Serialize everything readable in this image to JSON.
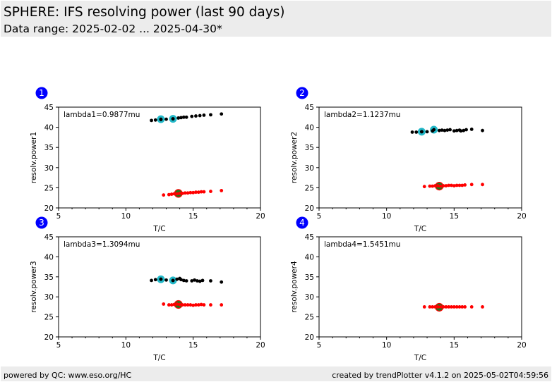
{
  "header": {
    "title": "SPHERE: IFS resolving power (last 90 days)",
    "subtitle": "Data range: 2025-02-02 ... 2025-04-30*"
  },
  "footer": {
    "left": "powered by QC: www.eso.org/HC",
    "right": "created by trendPlotter v4.1.2 on 2025-05-02T04:59:56"
  },
  "colors": {
    "badge": "#0000ff",
    "series_black": "#000000",
    "series_red": "#ff0000",
    "highlight_cyan": "#22b8c8",
    "highlight_green": "#1e7a1e",
    "header_bg": "#ececec"
  },
  "chart_data": [
    {
      "type": "scatter",
      "panel": "1",
      "annotation": "lambda1=0.9877mu",
      "xlabel": "T/C",
      "ylabel": "resolv.power1",
      "xlim": [
        5,
        20
      ],
      "ylim": [
        20,
        45
      ],
      "xticks": [
        5,
        10,
        15,
        20
      ],
      "yticks": [
        20,
        25,
        30,
        35,
        40,
        45
      ],
      "series": [
        {
          "color": "black",
          "x": [
            11.9,
            12.2,
            12.6,
            13.0,
            13.5,
            13.9,
            14.1,
            14.3,
            14.5,
            14.9,
            15.2,
            15.5,
            15.8,
            16.3,
            17.1
          ],
          "y": [
            41.7,
            41.8,
            41.9,
            42.0,
            42.1,
            42.3,
            42.4,
            42.5,
            42.5,
            42.7,
            42.8,
            42.9,
            43.0,
            43.1,
            43.3
          ]
        },
        {
          "color": "red",
          "x": [
            12.8,
            13.2,
            13.4,
            13.6,
            13.8,
            14.0,
            14.2,
            14.4,
            14.6,
            14.8,
            15.0,
            15.2,
            15.4,
            15.6,
            15.8,
            16.3,
            17.1
          ],
          "y": [
            23.2,
            23.3,
            23.4,
            23.5,
            23.5,
            23.6,
            23.6,
            23.7,
            23.7,
            23.8,
            23.8,
            23.9,
            23.9,
            24.0,
            24.0,
            24.1,
            24.3
          ]
        }
      ],
      "highlights": [
        {
          "color": "cyan",
          "x": 12.6,
          "y": 42.0
        },
        {
          "color": "cyan",
          "x": 13.5,
          "y": 42.1
        },
        {
          "color": "green",
          "x": 13.9,
          "y": 23.6
        }
      ]
    },
    {
      "type": "scatter",
      "panel": "2",
      "annotation": "lambda2=1.1237mu",
      "xlabel": "T/C",
      "ylabel": "resolv.power2",
      "xlim": [
        5,
        20
      ],
      "ylim": [
        20,
        45
      ],
      "xticks": [
        5,
        10,
        15,
        20
      ],
      "yticks": [
        20,
        25,
        30,
        35,
        40,
        45
      ],
      "series": [
        {
          "color": "black",
          "x": [
            11.9,
            12.2,
            12.6,
            13.0,
            13.4,
            13.9,
            14.1,
            14.3,
            14.5,
            14.7,
            15.0,
            15.2,
            15.4,
            15.5,
            15.7,
            15.9,
            16.3,
            17.1
          ],
          "y": [
            38.8,
            38.8,
            38.9,
            38.9,
            39.1,
            39.2,
            39.3,
            39.2,
            39.3,
            39.4,
            39.1,
            39.2,
            39.3,
            39.1,
            39.2,
            39.4,
            39.5,
            39.2
          ]
        },
        {
          "color": "red",
          "x": [
            12.8,
            13.2,
            13.4,
            13.6,
            13.8,
            14.0,
            14.2,
            14.4,
            14.6,
            14.8,
            15.0,
            15.2,
            15.4,
            15.6,
            15.8,
            16.3,
            17.1
          ],
          "y": [
            25.3,
            25.4,
            25.4,
            25.5,
            25.5,
            25.4,
            25.5,
            25.5,
            25.6,
            25.6,
            25.5,
            25.6,
            25.6,
            25.6,
            25.7,
            25.8,
            25.8
          ]
        }
      ],
      "highlights": [
        {
          "color": "cyan",
          "x": 12.6,
          "y": 38.9
        },
        {
          "color": "cyan",
          "x": 13.5,
          "y": 39.4
        },
        {
          "color": "green",
          "x": 13.9,
          "y": 25.4
        }
      ]
    },
    {
      "type": "scatter",
      "panel": "3",
      "annotation": "lambda3=1.3094mu",
      "xlabel": "T/C",
      "ylabel": "resolv.power3",
      "xlim": [
        5,
        20
      ],
      "ylim": [
        20,
        45
      ],
      "xticks": [
        5,
        10,
        15,
        20
      ],
      "yticks": [
        20,
        25,
        30,
        35,
        40,
        45
      ],
      "series": [
        {
          "color": "black",
          "x": [
            11.9,
            12.2,
            12.6,
            13.0,
            13.5,
            13.8,
            14.0,
            14.1,
            14.3,
            14.5,
            14.9,
            15.1,
            15.3,
            15.5,
            15.7,
            16.3,
            17.1
          ],
          "y": [
            34.1,
            34.3,
            34.4,
            34.2,
            34.1,
            34.4,
            34.6,
            34.3,
            34.1,
            34.0,
            34.0,
            34.2,
            34.0,
            33.9,
            34.1,
            34.0,
            33.7
          ]
        },
        {
          "color": "red",
          "x": [
            12.8,
            13.2,
            13.4,
            13.6,
            13.8,
            14.0,
            14.2,
            14.4,
            14.6,
            14.8,
            15.0,
            15.2,
            15.4,
            15.6,
            15.8,
            16.3,
            17.1
          ],
          "y": [
            28.2,
            28.0,
            28.0,
            28.1,
            28.2,
            28.1,
            28.0,
            28.0,
            28.0,
            28.0,
            27.9,
            28.0,
            28.0,
            28.1,
            28.0,
            28.0,
            28.0
          ]
        }
      ],
      "highlights": [
        {
          "color": "cyan",
          "x": 12.6,
          "y": 34.4
        },
        {
          "color": "cyan",
          "x": 13.5,
          "y": 34.1
        },
        {
          "color": "green",
          "x": 13.9,
          "y": 28.1
        }
      ]
    },
    {
      "type": "scatter",
      "panel": "4",
      "annotation": "lambda4=1.5451mu",
      "xlabel": "T/C",
      "ylabel": "resolv.power4",
      "xlim": [
        5,
        20
      ],
      "ylim": [
        20,
        45
      ],
      "xticks": [
        5,
        10,
        15,
        20
      ],
      "yticks": [
        20,
        25,
        30,
        35,
        40,
        45
      ],
      "series": [
        {
          "color": "red",
          "x": [
            12.8,
            13.2,
            13.4,
            13.6,
            13.8,
            14.0,
            14.2,
            14.4,
            14.6,
            14.8,
            15.0,
            15.2,
            15.4,
            15.6,
            15.8,
            16.3,
            17.1
          ],
          "y": [
            27.5,
            27.5,
            27.5,
            27.5,
            27.5,
            27.5,
            27.5,
            27.5,
            27.5,
            27.5,
            27.5,
            27.5,
            27.5,
            27.5,
            27.5,
            27.5,
            27.5
          ]
        }
      ],
      "highlights": [
        {
          "color": "green",
          "x": 13.9,
          "y": 27.4
        }
      ]
    }
  ]
}
